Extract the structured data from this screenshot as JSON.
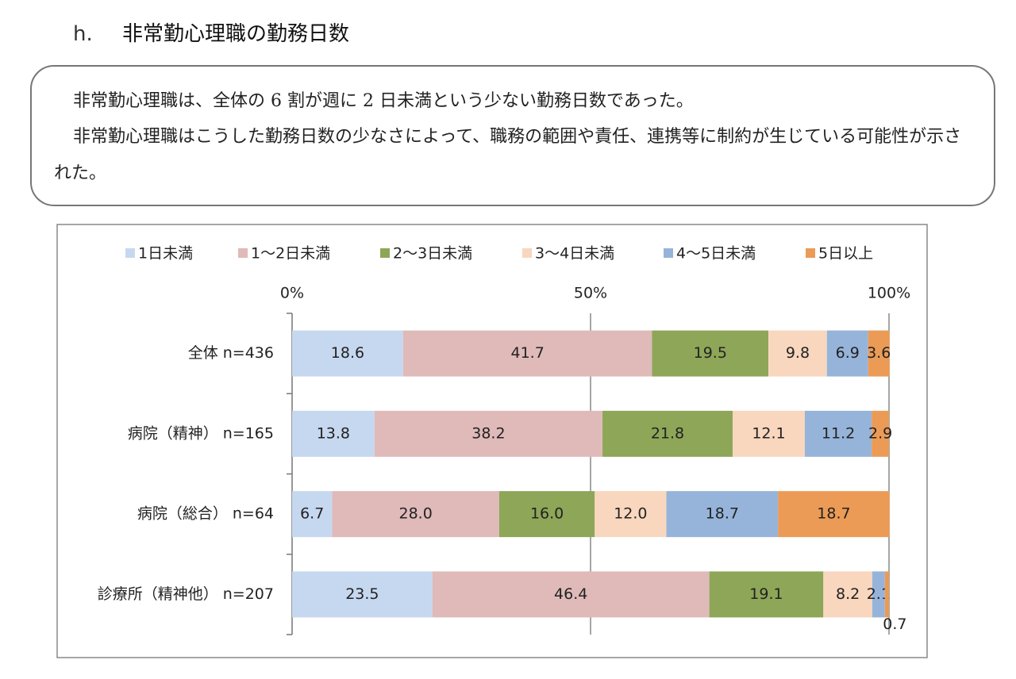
{
  "heading": {
    "number": "h.",
    "title": "非常勤心理職の勤務日数"
  },
  "summary": [
    "非常勤心理職は、全体の 6 割が週に 2 日未満という少ない勤務日数であった。",
    "非常勤心理職はこうした勤務日数の少なさによって、職務の範囲や責任、連携等に制約が生じている可能性が示された。"
  ],
  "chart_data": {
    "type": "stacked_bar_horizontal",
    "categories": [
      "全体 n=436",
      "病院（精神） n=165",
      "病院（総合） n=64",
      "診療所（精神他） n=207"
    ],
    "series": [
      {
        "name": "1日未満",
        "color": "#c6d8ef",
        "values": [
          18.6,
          13.8,
          6.7,
          23.5
        ],
        "value_labels": [
          "18.6",
          "13.8",
          "6.7",
          "23.5"
        ]
      },
      {
        "name": "1～2日未満",
        "color": "#dfbab9",
        "values": [
          41.7,
          38.2,
          28.0,
          46.4
        ],
        "value_labels": [
          "41.7",
          "38.2",
          "28.0",
          "46.4"
        ]
      },
      {
        "name": "2～3日未満",
        "color": "#8ea657",
        "values": [
          19.5,
          21.8,
          16.0,
          19.1
        ],
        "value_labels": [
          "19.5",
          "21.8",
          "16.0",
          "19.1"
        ]
      },
      {
        "name": "3～4日未満",
        "color": "#f8d7be",
        "values": [
          9.8,
          12.1,
          12.0,
          8.2
        ],
        "value_labels": [
          "9.8",
          "12.1",
          "12.0",
          "8.2"
        ]
      },
      {
        "name": "4～5日未満",
        "color": "#96b4da",
        "values": [
          6.9,
          11.2,
          18.7,
          2.1
        ],
        "value_labels": [
          "6.9",
          "11.2",
          "18.7",
          "2.1"
        ]
      },
      {
        "name": "5日以上",
        "color": "#eb9b56",
        "values": [
          3.6,
          2.9,
          18.7,
          0.7
        ],
        "value_labels": [
          "3.6",
          "2.9",
          "18.7",
          "0.7"
        ]
      }
    ],
    "xlim": [
      0,
      100
    ],
    "xticks": [
      {
        "value": 0,
        "label": "0%"
      },
      {
        "value": 50,
        "label": "50%"
      },
      {
        "value": 100,
        "label": "100%"
      }
    ],
    "grid": true,
    "legend": "top"
  }
}
